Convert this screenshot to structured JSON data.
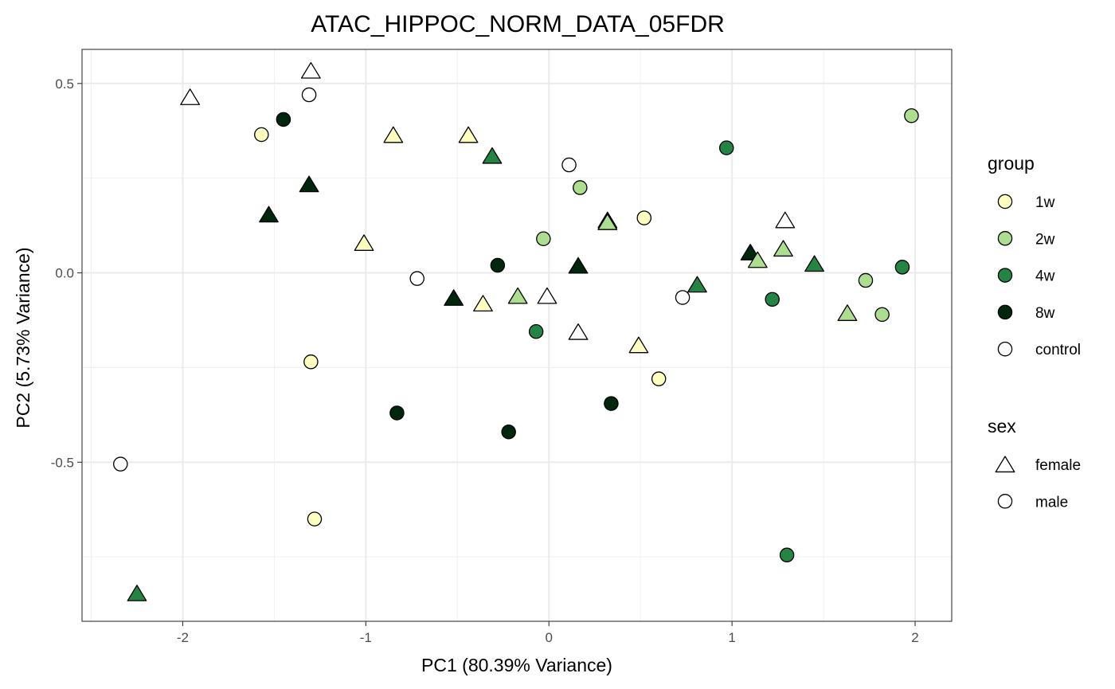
{
  "chart_data": {
    "type": "scatter",
    "title": "ATAC_HIPPOC_NORM_DATA_05FDR",
    "xlabel": "PC1 (80.39% Variance)",
    "ylabel": "PC2 (5.73% Variance)",
    "xlim": [
      -2.55,
      2.2
    ],
    "ylim": [
      -0.92,
      0.59
    ],
    "xticks": [
      -2,
      -1,
      0,
      1,
      2
    ],
    "xtick_labels": [
      "-2",
      "-1",
      "0",
      "1",
      "2"
    ],
    "yticks": [
      -0.5,
      0.0,
      0.5
    ],
    "ytick_labels": [
      "-0.5",
      "0.0",
      "0.5"
    ],
    "grid": true,
    "legend_placement": "right",
    "colors": {
      "1w": "#ffffbf",
      "2w": "#addd8e",
      "4w": "#238443",
      "8w": "#00260d",
      "control": "#ffffff"
    },
    "legends": [
      {
        "title": "group",
        "entries": [
          {
            "label": "1w",
            "group": "1w",
            "shape": "circle"
          },
          {
            "label": "2w",
            "group": "2w",
            "shape": "circle"
          },
          {
            "label": "4w",
            "group": "4w",
            "shape": "circle"
          },
          {
            "label": "8w",
            "group": "8w",
            "shape": "circle"
          },
          {
            "label": "control",
            "group": "control",
            "shape": "circle"
          }
        ]
      },
      {
        "title": "sex",
        "entries": [
          {
            "label": "female",
            "group": "control",
            "shape": "triangle"
          },
          {
            "label": "male",
            "group": "control",
            "shape": "circle"
          }
        ]
      }
    ],
    "points": [
      {
        "x": -1.96,
        "y": 0.46,
        "group": "control",
        "sex": "female"
      },
      {
        "x": -1.3,
        "y": 0.53,
        "group": "control",
        "sex": "female"
      },
      {
        "x": -1.31,
        "y": 0.47,
        "group": "control",
        "sex": "male"
      },
      {
        "x": -1.57,
        "y": 0.365,
        "group": "1w",
        "sex": "male"
      },
      {
        "x": -1.45,
        "y": 0.405,
        "group": "8w",
        "sex": "male"
      },
      {
        "x": -0.85,
        "y": 0.36,
        "group": "1w",
        "sex": "female"
      },
      {
        "x": -0.44,
        "y": 0.36,
        "group": "1w",
        "sex": "female"
      },
      {
        "x": -0.31,
        "y": 0.305,
        "group": "4w",
        "sex": "female"
      },
      {
        "x": -1.31,
        "y": 0.23,
        "group": "8w",
        "sex": "female"
      },
      {
        "x": -1.53,
        "y": 0.15,
        "group": "8w",
        "sex": "female"
      },
      {
        "x": -1.01,
        "y": 0.075,
        "group": "1w",
        "sex": "female"
      },
      {
        "x": -0.72,
        "y": -0.015,
        "group": "control",
        "sex": "male"
      },
      {
        "x": -0.28,
        "y": 0.02,
        "group": "8w",
        "sex": "male"
      },
      {
        "x": -0.03,
        "y": 0.09,
        "group": "2w",
        "sex": "male"
      },
      {
        "x": 0.11,
        "y": 0.285,
        "group": "control",
        "sex": "male"
      },
      {
        "x": 0.17,
        "y": 0.225,
        "group": "2w",
        "sex": "male"
      },
      {
        "x": 0.32,
        "y": 0.135,
        "group": "4w",
        "sex": "female"
      },
      {
        "x": 0.32,
        "y": 0.13,
        "group": "2w",
        "sex": "female"
      },
      {
        "x": 0.52,
        "y": 0.145,
        "group": "1w",
        "sex": "male"
      },
      {
        "x": 0.97,
        "y": 0.33,
        "group": "4w",
        "sex": "male"
      },
      {
        "x": 1.98,
        "y": 0.415,
        "group": "2w",
        "sex": "male"
      },
      {
        "x": 1.29,
        "y": 0.135,
        "group": "control",
        "sex": "female"
      },
      {
        "x": 0.16,
        "y": 0.015,
        "group": "8w",
        "sex": "female"
      },
      {
        "x": -0.52,
        "y": -0.07,
        "group": "8w",
        "sex": "female"
      },
      {
        "x": -0.36,
        "y": -0.085,
        "group": "1w",
        "sex": "female"
      },
      {
        "x": -0.17,
        "y": -0.065,
        "group": "2w",
        "sex": "female"
      },
      {
        "x": -0.01,
        "y": -0.065,
        "group": "control",
        "sex": "female"
      },
      {
        "x": -0.07,
        "y": -0.155,
        "group": "4w",
        "sex": "male"
      },
      {
        "x": 0.16,
        "y": -0.16,
        "group": "control",
        "sex": "female"
      },
      {
        "x": 0.49,
        "y": -0.195,
        "group": "1w",
        "sex": "female"
      },
      {
        "x": 0.73,
        "y": -0.065,
        "group": "control",
        "sex": "male"
      },
      {
        "x": 0.81,
        "y": -0.035,
        "group": "4w",
        "sex": "female"
      },
      {
        "x": 1.1,
        "y": 0.05,
        "group": "8w",
        "sex": "female"
      },
      {
        "x": 1.14,
        "y": 0.03,
        "group": "2w",
        "sex": "female"
      },
      {
        "x": 1.28,
        "y": 0.06,
        "group": "2w",
        "sex": "female"
      },
      {
        "x": 1.45,
        "y": 0.02,
        "group": "4w",
        "sex": "female"
      },
      {
        "x": 1.22,
        "y": -0.07,
        "group": "4w",
        "sex": "male"
      },
      {
        "x": 1.73,
        "y": -0.02,
        "group": "2w",
        "sex": "male"
      },
      {
        "x": 1.93,
        "y": 0.015,
        "group": "4w",
        "sex": "male"
      },
      {
        "x": 1.63,
        "y": -0.11,
        "group": "2w",
        "sex": "female"
      },
      {
        "x": 1.82,
        "y": -0.11,
        "group": "2w",
        "sex": "male"
      },
      {
        "x": -1.3,
        "y": -0.235,
        "group": "1w",
        "sex": "male"
      },
      {
        "x": -0.83,
        "y": -0.37,
        "group": "8w",
        "sex": "male"
      },
      {
        "x": -0.22,
        "y": -0.42,
        "group": "8w",
        "sex": "male"
      },
      {
        "x": 0.34,
        "y": -0.345,
        "group": "8w",
        "sex": "male"
      },
      {
        "x": 0.6,
        "y": -0.28,
        "group": "1w",
        "sex": "male"
      },
      {
        "x": -2.34,
        "y": -0.505,
        "group": "control",
        "sex": "male"
      },
      {
        "x": -1.28,
        "y": -0.65,
        "group": "1w",
        "sex": "male"
      },
      {
        "x": 1.3,
        "y": -0.745,
        "group": "4w",
        "sex": "male"
      },
      {
        "x": -2.25,
        "y": -0.85,
        "group": "4w",
        "sex": "female"
      }
    ]
  }
}
